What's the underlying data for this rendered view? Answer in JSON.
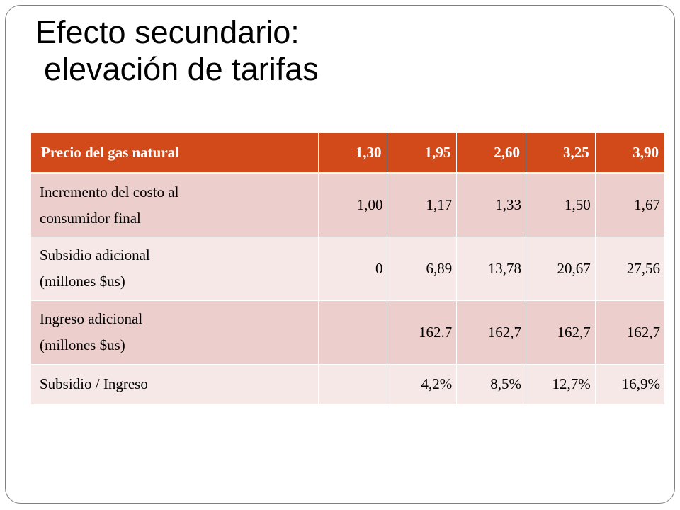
{
  "slide": {
    "title_line1": "Efecto secundario:",
    "title_line2": "elevación de tarifas"
  },
  "table": {
    "header": [
      "Precio del gas natural",
      "1,30",
      "1,95",
      "2,60",
      "3,25",
      "3,90"
    ],
    "rows": [
      {
        "label_line1": "Incremento del costo al",
        "label_line2": "consumidor final",
        "cells": [
          "1,00",
          "1,17",
          "1,33",
          "1,50",
          "1,67"
        ]
      },
      {
        "label_line1": "Subsidio adicional",
        "label_line2": "(millones $us)",
        "cells": [
          "0",
          "6,89",
          "13,78",
          "20,67",
          "27,56"
        ]
      },
      {
        "label_line1": "Ingreso adicional",
        "label_line2": "(millones $us)",
        "cells": [
          "",
          "162.7",
          "162,7",
          "162,7",
          "162,7"
        ]
      },
      {
        "label_line1": "Subsidio / Ingreso",
        "label_line2": "",
        "cells": [
          "",
          "4,2%",
          "8,5%",
          "12,7%",
          "16,9%"
        ]
      }
    ]
  },
  "colors": {
    "header_bg": "#d24a1a",
    "row_dark": "#eccfcd",
    "row_light": "#f6e8e7"
  }
}
